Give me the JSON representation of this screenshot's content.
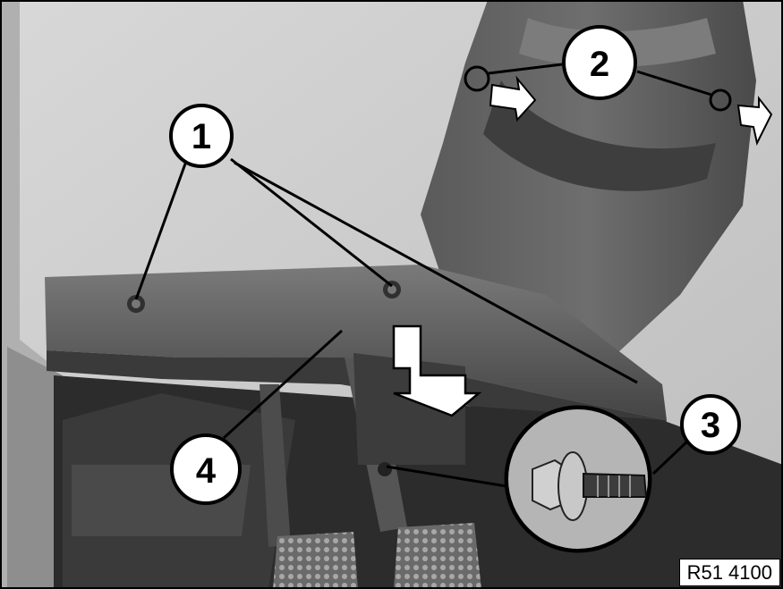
{
  "callouts": [
    {
      "id": "1",
      "label": "1"
    },
    {
      "id": "2",
      "label": "2"
    },
    {
      "id": "3",
      "label": "3"
    },
    {
      "id": "4",
      "label": "4"
    }
  ],
  "reference_code": "R51 4100",
  "colors": {
    "background_light": "#cfcfcf",
    "trim_dark": "#555555",
    "floor_dark": "#2c2c2c",
    "callout_fill": "#ffffff",
    "callout_stroke": "#000000"
  }
}
